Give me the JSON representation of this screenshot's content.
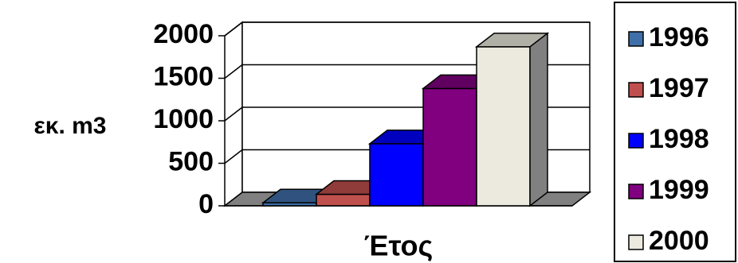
{
  "chart_data": {
    "type": "bar",
    "style": "3d-column",
    "categories": [
      "1996",
      "1997",
      "1998",
      "1999",
      "2000"
    ],
    "values": [
      35,
      135,
      730,
      1380,
      1870
    ],
    "colors": [
      "#3f6fa8",
      "#c0504d",
      "#0000ff",
      "#800080",
      "#eceadf"
    ],
    "xlabel": "Έτος",
    "ylabel": "εκ. m3",
    "yticks": [
      "0",
      "500",
      "1000",
      "1500",
      "2000"
    ],
    "ylim": [
      0,
      2000
    ],
    "grid": true,
    "legend": {
      "placement": "right",
      "entries": [
        "1996",
        "1997",
        "1998",
        "1999",
        "2000"
      ]
    }
  }
}
